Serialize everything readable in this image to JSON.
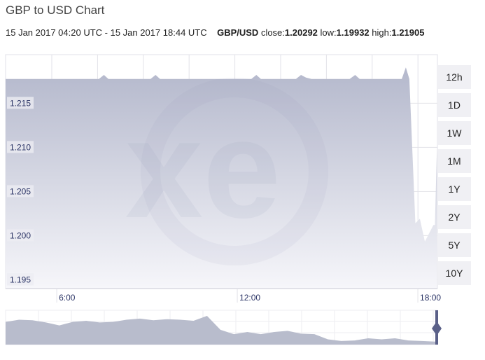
{
  "title": "GBP to USD Chart",
  "subtitle": {
    "range": "15 Jan 2017 04:20 UTC - 15 Jan 2017 18:44 UTC",
    "pair": "GBP/USD",
    "close_label": "close:",
    "close": "1.20292",
    "low_label": "low:",
    "low": "1.19932",
    "high_label": "high:",
    "high": "1.21905"
  },
  "range_buttons": [
    "12h",
    "1D",
    "1W",
    "1M",
    "1Y",
    "2Y",
    "5Y",
    "10Y"
  ],
  "colors": {
    "fill_top": "#b4b8cc",
    "fill_bottom": "#f6f6fa",
    "line": "#7a7f9e",
    "grid": "#e2e2e8",
    "axis_text": "#2c3566"
  },
  "chart_data": {
    "type": "area",
    "title": "GBP to USD Chart",
    "ylim": [
      1.194,
      1.2205
    ],
    "xlim": [
      "04:18",
      "18:39"
    ],
    "y_ticks": [
      "1.195",
      "1.200",
      "1.205",
      "1.210",
      "1.215"
    ],
    "x_ticks": [
      "6:00",
      "12:00",
      "18:00"
    ],
    "grid": true,
    "points": [
      [
        "04:18",
        1.21775
      ],
      [
        "05:50",
        1.21775
      ],
      [
        "07:24",
        1.21775
      ],
      [
        "07:34",
        1.2182
      ],
      [
        "07:43",
        1.21775
      ],
      [
        "09:07",
        1.21775
      ],
      [
        "09:17",
        1.2182
      ],
      [
        "09:26",
        1.21775
      ],
      [
        "12:28",
        1.21775
      ],
      [
        "12:38",
        1.2182
      ],
      [
        "12:47",
        1.21775
      ],
      [
        "13:57",
        1.21775
      ],
      [
        "14:07",
        1.2182
      ],
      [
        "14:17",
        1.2179
      ],
      [
        "14:28",
        1.21775
      ],
      [
        "15:44",
        1.21775
      ],
      [
        "15:55",
        1.2182
      ],
      [
        "16:04",
        1.21775
      ],
      [
        "17:28",
        1.21775
      ],
      [
        "17:36",
        1.21905
      ],
      [
        "17:43",
        1.21775
      ],
      [
        "17:55",
        1.2014
      ],
      [
        "18:04",
        1.2019
      ],
      [
        "18:14",
        1.19932
      ],
      [
        "18:31",
        1.2012
      ],
      [
        "18:34",
        1.2012
      ],
      [
        "18:38",
        1.2099
      ]
    ],
    "navigator_values": [
      0.78,
      0.86,
      0.84,
      0.76,
      0.65,
      0.78,
      0.82,
      0.76,
      0.78,
      0.86,
      0.9,
      0.84,
      0.88,
      0.86,
      0.82,
      1.0,
      0.49,
      0.33,
      0.41,
      0.33,
      0.41,
      0.45,
      0.35,
      0.33,
      0.14,
      0.08,
      0.1,
      0.18,
      0.14,
      0.18,
      0.1,
      0.08,
      0.06
    ]
  }
}
